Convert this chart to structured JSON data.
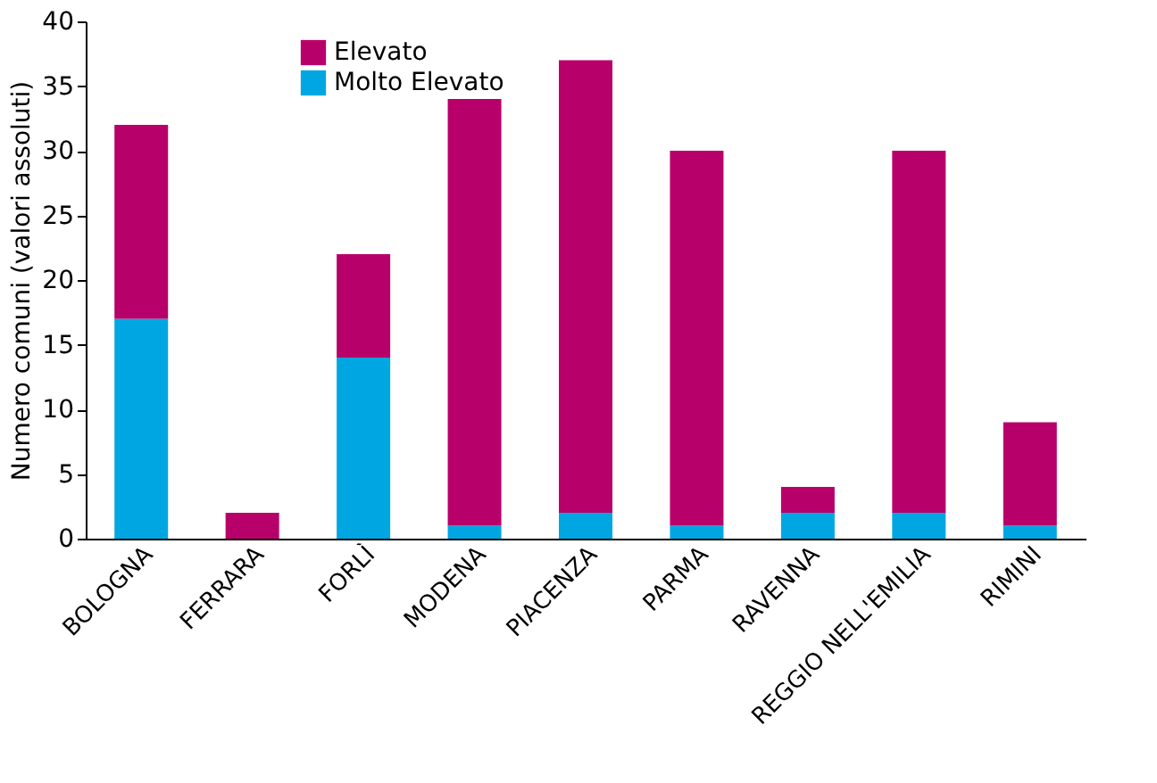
{
  "chart_data": {
    "type": "bar",
    "stacked": true,
    "ylabel": "Numero comuni (valori assoluti)",
    "categories": [
      "BOLOGNA",
      "FERRARA",
      "FORLÌ",
      "MODENA",
      "PIACENZA",
      "PARMA",
      "RAVENNA",
      "REGGIO NELL'EMILIA",
      "RIMINI"
    ],
    "series": [
      {
        "name": "Molto Elevato",
        "color": "#00a6e2",
        "values": [
          17,
          0,
          14,
          1,
          2,
          1,
          2,
          2,
          1
        ]
      },
      {
        "name": "Elevato",
        "color": "#b8006b",
        "values": [
          15,
          2,
          8,
          33,
          35,
          29,
          2,
          28,
          8
        ]
      }
    ],
    "ylim": [
      0,
      40
    ],
    "yticks": [
      0,
      5,
      10,
      15,
      20,
      25,
      30,
      35,
      40
    ],
    "grid": false,
    "legend": "top left"
  }
}
